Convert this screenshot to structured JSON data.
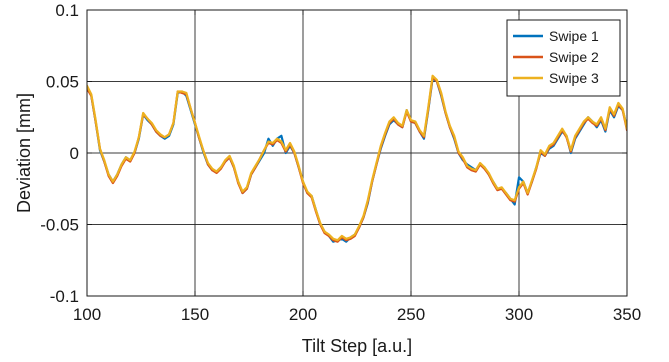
{
  "chart_data": {
    "type": "line",
    "xlabel": "Tilt Step [a.u.]",
    "ylabel": "Deviation [mm]",
    "xlim": [
      100,
      350
    ],
    "ylim": [
      -0.1,
      0.1
    ],
    "xticks": [
      100,
      150,
      200,
      250,
      300,
      350
    ],
    "yticks": [
      -0.1,
      -0.05,
      0,
      0.05,
      0.1
    ],
    "xtick_labels": [
      "100",
      "150",
      "200",
      "250",
      "300",
      "350"
    ],
    "ytick_labels": [
      "-0.1",
      "-0.05",
      "0",
      "0.05",
      "0.1"
    ],
    "grid": true,
    "legend_position": "top-right",
    "series": [
      {
        "name": "Swipe 1",
        "color": "#0072BD",
        "x": [
          100,
          102,
          104,
          106,
          108,
          110,
          112,
          114,
          116,
          118,
          120,
          122,
          124,
          126,
          128,
          130,
          132,
          134,
          136,
          138,
          140,
          142,
          144,
          146,
          148,
          150,
          152,
          154,
          156,
          158,
          160,
          162,
          164,
          166,
          168,
          170,
          172,
          174,
          176,
          178,
          180,
          182,
          184,
          186,
          188,
          190,
          192,
          194,
          196,
          198,
          200,
          202,
          204,
          206,
          208,
          210,
          212,
          214,
          216,
          218,
          220,
          222,
          224,
          226,
          228,
          230,
          232,
          234,
          236,
          238,
          240,
          242,
          244,
          246,
          248,
          250,
          252,
          254,
          256,
          258,
          260,
          262,
          264,
          266,
          268,
          270,
          272,
          274,
          276,
          278,
          280,
          282,
          284,
          286,
          288,
          290,
          292,
          294,
          296,
          298,
          300,
          302,
          304,
          306,
          308,
          310,
          312,
          314,
          316,
          318,
          320,
          322,
          324,
          326,
          328,
          330,
          332,
          334,
          336,
          338,
          340,
          342,
          344,
          346,
          348,
          350
        ],
        "y": [
          0.046,
          0.04,
          0.022,
          0.002,
          -0.006,
          -0.015,
          -0.02,
          -0.015,
          -0.008,
          -0.003,
          -0.005,
          0.0,
          0.01,
          0.027,
          0.023,
          0.02,
          0.015,
          0.012,
          0.01,
          0.012,
          0.02,
          0.042,
          0.043,
          0.04,
          0.03,
          0.02,
          0.01,
          0.0,
          -0.008,
          -0.012,
          -0.013,
          -0.01,
          -0.006,
          -0.003,
          -0.01,
          -0.02,
          -0.028,
          -0.025,
          -0.015,
          -0.01,
          -0.005,
          0.0,
          0.01,
          0.005,
          0.01,
          0.012,
          0.0,
          0.005,
          0.0,
          -0.01,
          -0.02,
          -0.028,
          -0.03,
          -0.04,
          -0.05,
          -0.055,
          -0.058,
          -0.062,
          -0.061,
          -0.06,
          -0.062,
          -0.059,
          -0.057,
          -0.052,
          -0.045,
          -0.035,
          -0.02,
          -0.008,
          0.003,
          0.012,
          0.02,
          0.023,
          0.02,
          0.018,
          0.03,
          0.022,
          0.021,
          0.015,
          0.01,
          0.03,
          0.052,
          0.05,
          0.04,
          0.028,
          0.018,
          0.01,
          0.0,
          -0.005,
          -0.008,
          -0.01,
          -0.012,
          -0.008,
          -0.01,
          -0.015,
          -0.02,
          -0.025,
          -0.025,
          -0.028,
          -0.032,
          -0.036,
          -0.017,
          -0.02,
          -0.028,
          -0.02,
          -0.01,
          0.0,
          -0.002,
          0.003,
          0.005,
          0.01,
          0.015,
          0.012,
          0.0,
          0.01,
          0.015,
          0.02,
          0.025,
          0.022,
          0.018,
          0.023,
          0.015,
          0.03,
          0.025,
          0.033,
          0.03,
          0.018
        ]
      },
      {
        "name": "Swipe 2",
        "color": "#D95319",
        "x": [
          100,
          102,
          104,
          106,
          108,
          110,
          112,
          114,
          116,
          118,
          120,
          122,
          124,
          126,
          128,
          130,
          132,
          134,
          136,
          138,
          140,
          142,
          144,
          146,
          148,
          150,
          152,
          154,
          156,
          158,
          160,
          162,
          164,
          166,
          168,
          170,
          172,
          174,
          176,
          178,
          180,
          182,
          184,
          186,
          188,
          190,
          192,
          194,
          196,
          198,
          200,
          202,
          204,
          206,
          208,
          210,
          212,
          214,
          216,
          218,
          220,
          222,
          224,
          226,
          228,
          230,
          232,
          234,
          236,
          238,
          240,
          242,
          244,
          246,
          248,
          250,
          252,
          254,
          256,
          258,
          260,
          262,
          264,
          266,
          268,
          270,
          272,
          274,
          276,
          278,
          280,
          282,
          284,
          286,
          288,
          290,
          292,
          294,
          296,
          298,
          300,
          302,
          304,
          306,
          308,
          310,
          312,
          314,
          316,
          318,
          320,
          322,
          324,
          326,
          328,
          330,
          332,
          334,
          336,
          338,
          340,
          342,
          344,
          346,
          348,
          350
        ],
        "y": [
          0.045,
          0.04,
          0.022,
          0.003,
          -0.006,
          -0.016,
          -0.021,
          -0.016,
          -0.009,
          -0.004,
          -0.006,
          0.0,
          0.011,
          0.027,
          0.024,
          0.02,
          0.015,
          0.012,
          0.011,
          0.013,
          0.021,
          0.043,
          0.042,
          0.041,
          0.031,
          0.021,
          0.01,
          0.001,
          -0.008,
          -0.012,
          -0.014,
          -0.011,
          -0.006,
          -0.003,
          -0.01,
          -0.021,
          -0.028,
          -0.025,
          -0.015,
          -0.01,
          -0.004,
          0.002,
          0.007,
          0.006,
          0.009,
          0.007,
          0.001,
          0.006,
          0.0,
          -0.01,
          -0.021,
          -0.028,
          -0.031,
          -0.041,
          -0.05,
          -0.056,
          -0.058,
          -0.061,
          -0.062,
          -0.059,
          -0.061,
          -0.06,
          -0.058,
          -0.052,
          -0.045,
          -0.034,
          -0.02,
          -0.008,
          0.004,
          0.013,
          0.021,
          0.024,
          0.02,
          0.018,
          0.029,
          0.022,
          0.021,
          0.015,
          0.011,
          0.031,
          0.053,
          0.05,
          0.041,
          0.028,
          0.018,
          0.011,
          0.0,
          -0.004,
          -0.01,
          -0.012,
          -0.013,
          -0.008,
          -0.011,
          -0.015,
          -0.021,
          -0.026,
          -0.025,
          -0.029,
          -0.033,
          -0.034,
          -0.025,
          -0.021,
          -0.029,
          -0.02,
          -0.011,
          0.001,
          -0.002,
          0.004,
          0.006,
          0.011,
          0.016,
          0.011,
          0.001,
          0.011,
          0.016,
          0.021,
          0.024,
          0.021,
          0.019,
          0.024,
          0.016,
          0.031,
          0.026,
          0.034,
          0.03,
          0.016
        ]
      },
      {
        "name": "Swipe 3",
        "color": "#EDB120",
        "x": [
          100,
          102,
          104,
          106,
          108,
          110,
          112,
          114,
          116,
          118,
          120,
          122,
          124,
          126,
          128,
          130,
          132,
          134,
          136,
          138,
          140,
          142,
          144,
          146,
          148,
          150,
          152,
          154,
          156,
          158,
          160,
          162,
          164,
          166,
          168,
          170,
          172,
          174,
          176,
          178,
          180,
          182,
          184,
          186,
          188,
          190,
          192,
          194,
          196,
          198,
          200,
          202,
          204,
          206,
          208,
          210,
          212,
          214,
          216,
          218,
          220,
          222,
          224,
          226,
          228,
          230,
          232,
          234,
          236,
          238,
          240,
          242,
          244,
          246,
          248,
          250,
          252,
          254,
          256,
          258,
          260,
          262,
          264,
          266,
          268,
          270,
          272,
          274,
          276,
          278,
          280,
          282,
          284,
          286,
          288,
          290,
          292,
          294,
          296,
          298,
          300,
          302,
          304,
          306,
          308,
          310,
          312,
          314,
          316,
          318,
          320,
          322,
          324,
          326,
          328,
          330,
          332,
          334,
          336,
          338,
          340,
          342,
          344,
          346,
          348,
          350
        ],
        "y": [
          0.047,
          0.041,
          0.023,
          0.003,
          -0.005,
          -0.015,
          -0.02,
          -0.015,
          -0.008,
          -0.003,
          -0.005,
          0.001,
          0.011,
          0.028,
          0.024,
          0.021,
          0.016,
          0.013,
          0.011,
          0.013,
          0.021,
          0.043,
          0.043,
          0.042,
          0.031,
          0.021,
          0.011,
          0.001,
          -0.007,
          -0.011,
          -0.013,
          -0.01,
          -0.005,
          -0.002,
          -0.009,
          -0.02,
          -0.027,
          -0.024,
          -0.014,
          -0.009,
          -0.004,
          0.002,
          0.008,
          0.007,
          0.01,
          0.008,
          0.002,
          0.007,
          0.001,
          -0.009,
          -0.02,
          -0.027,
          -0.03,
          -0.04,
          -0.049,
          -0.055,
          -0.057,
          -0.06,
          -0.061,
          -0.058,
          -0.06,
          -0.059,
          -0.057,
          -0.051,
          -0.044,
          -0.033,
          -0.019,
          -0.007,
          0.005,
          0.014,
          0.022,
          0.025,
          0.021,
          0.019,
          0.03,
          0.023,
          0.022,
          0.016,
          0.012,
          0.032,
          0.054,
          0.051,
          0.042,
          0.029,
          0.019,
          0.012,
          0.001,
          -0.003,
          -0.009,
          -0.011,
          -0.012,
          -0.007,
          -0.01,
          -0.014,
          -0.02,
          -0.025,
          -0.024,
          -0.028,
          -0.032,
          -0.033,
          -0.024,
          -0.02,
          -0.028,
          -0.019,
          -0.01,
          0.002,
          -0.001,
          0.005,
          0.007,
          0.012,
          0.017,
          0.012,
          0.002,
          0.012,
          0.017,
          0.022,
          0.025,
          0.022,
          0.02,
          0.025,
          0.017,
          0.032,
          0.027,
          0.035,
          0.031,
          0.017
        ]
      }
    ]
  }
}
